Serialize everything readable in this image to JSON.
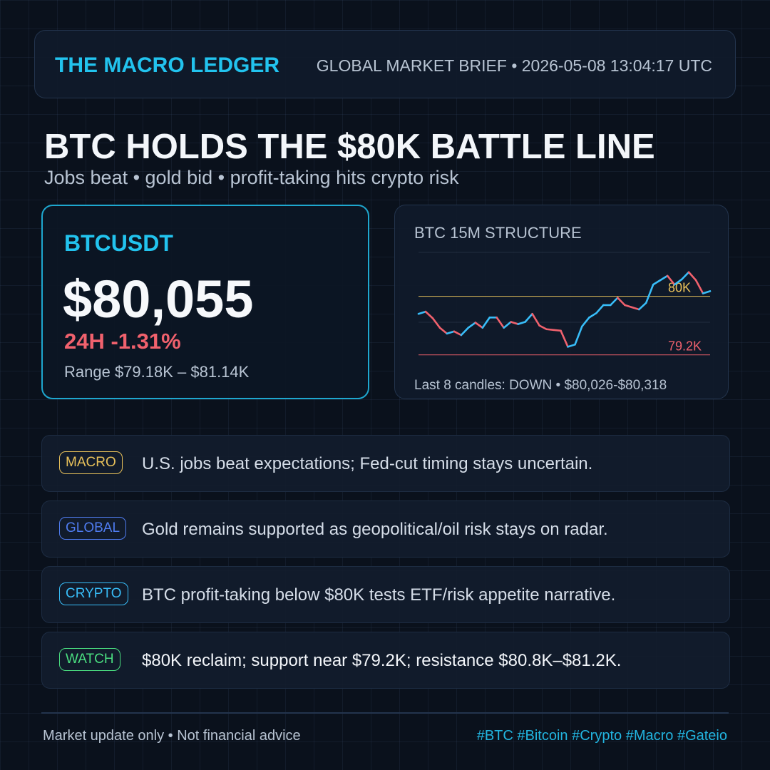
{
  "header": {
    "brand": "THE MACRO LEDGER",
    "meta": "GLOBAL MARKET BRIEF • 2026-05-08 13:04:17 UTC"
  },
  "headline": {
    "title": "BTC HOLDS THE $80K BATTLE LINE",
    "subtitle": "Jobs beat • gold bid • profit-taking hits crypto risk"
  },
  "ticker": {
    "symbol": "BTCUSDT",
    "price": "$80,055",
    "change": "24H -1.31%",
    "range": "Range $79.18K – $81.14K"
  },
  "chart_data": {
    "type": "line",
    "title": "BTC 15M STRUCTURE",
    "values": [
      79760,
      79790,
      79700,
      79570,
      79490,
      79520,
      79470,
      79570,
      79640,
      79570,
      79710,
      79710,
      79570,
      79650,
      79620,
      79650,
      79760,
      79600,
      79550,
      79540,
      79530,
      79310,
      79340,
      79590,
      79710,
      79770,
      79880,
      79880,
      79980,
      79880,
      79850,
      79820,
      79910,
      80160,
      80220,
      80280,
      80160,
      80230,
      80330,
      80220,
      80040,
      80070
    ],
    "ylim": [
      79080,
      80600
    ],
    "up_color": "#38bdf8",
    "down_color": "#f0616d",
    "levels": [
      {
        "value": 80000,
        "label": "80K",
        "color": "#e8c15a"
      },
      {
        "value": 79200,
        "label": "79.2K",
        "color": "#f0616d"
      }
    ],
    "footnote": "Last 8 candles: DOWN • $80,026-$80,318"
  },
  "news": [
    {
      "tag": "MACRO",
      "text": "U.S. jobs beat expectations; Fed-cut timing stays uncertain.",
      "color": "#e8c15a"
    },
    {
      "tag": "GLOBAL",
      "text": "Gold remains supported as geopolitical/oil risk stays on radar.",
      "color": "#4f7cf0"
    },
    {
      "tag": "CRYPTO",
      "text": "BTC profit-taking below $80K tests ETF/risk appetite narrative.",
      "color": "#38bdf8"
    },
    {
      "tag": "WATCH",
      "text": "$80K reclaim; support near $79.2K; resistance $80.8K–$81.2K.",
      "color": "#4ade80"
    }
  ],
  "footer": {
    "disclaimer": "Market update only • Not financial advice",
    "tags": "#BTC #Bitcoin #Crypto #Macro #Gateio"
  }
}
